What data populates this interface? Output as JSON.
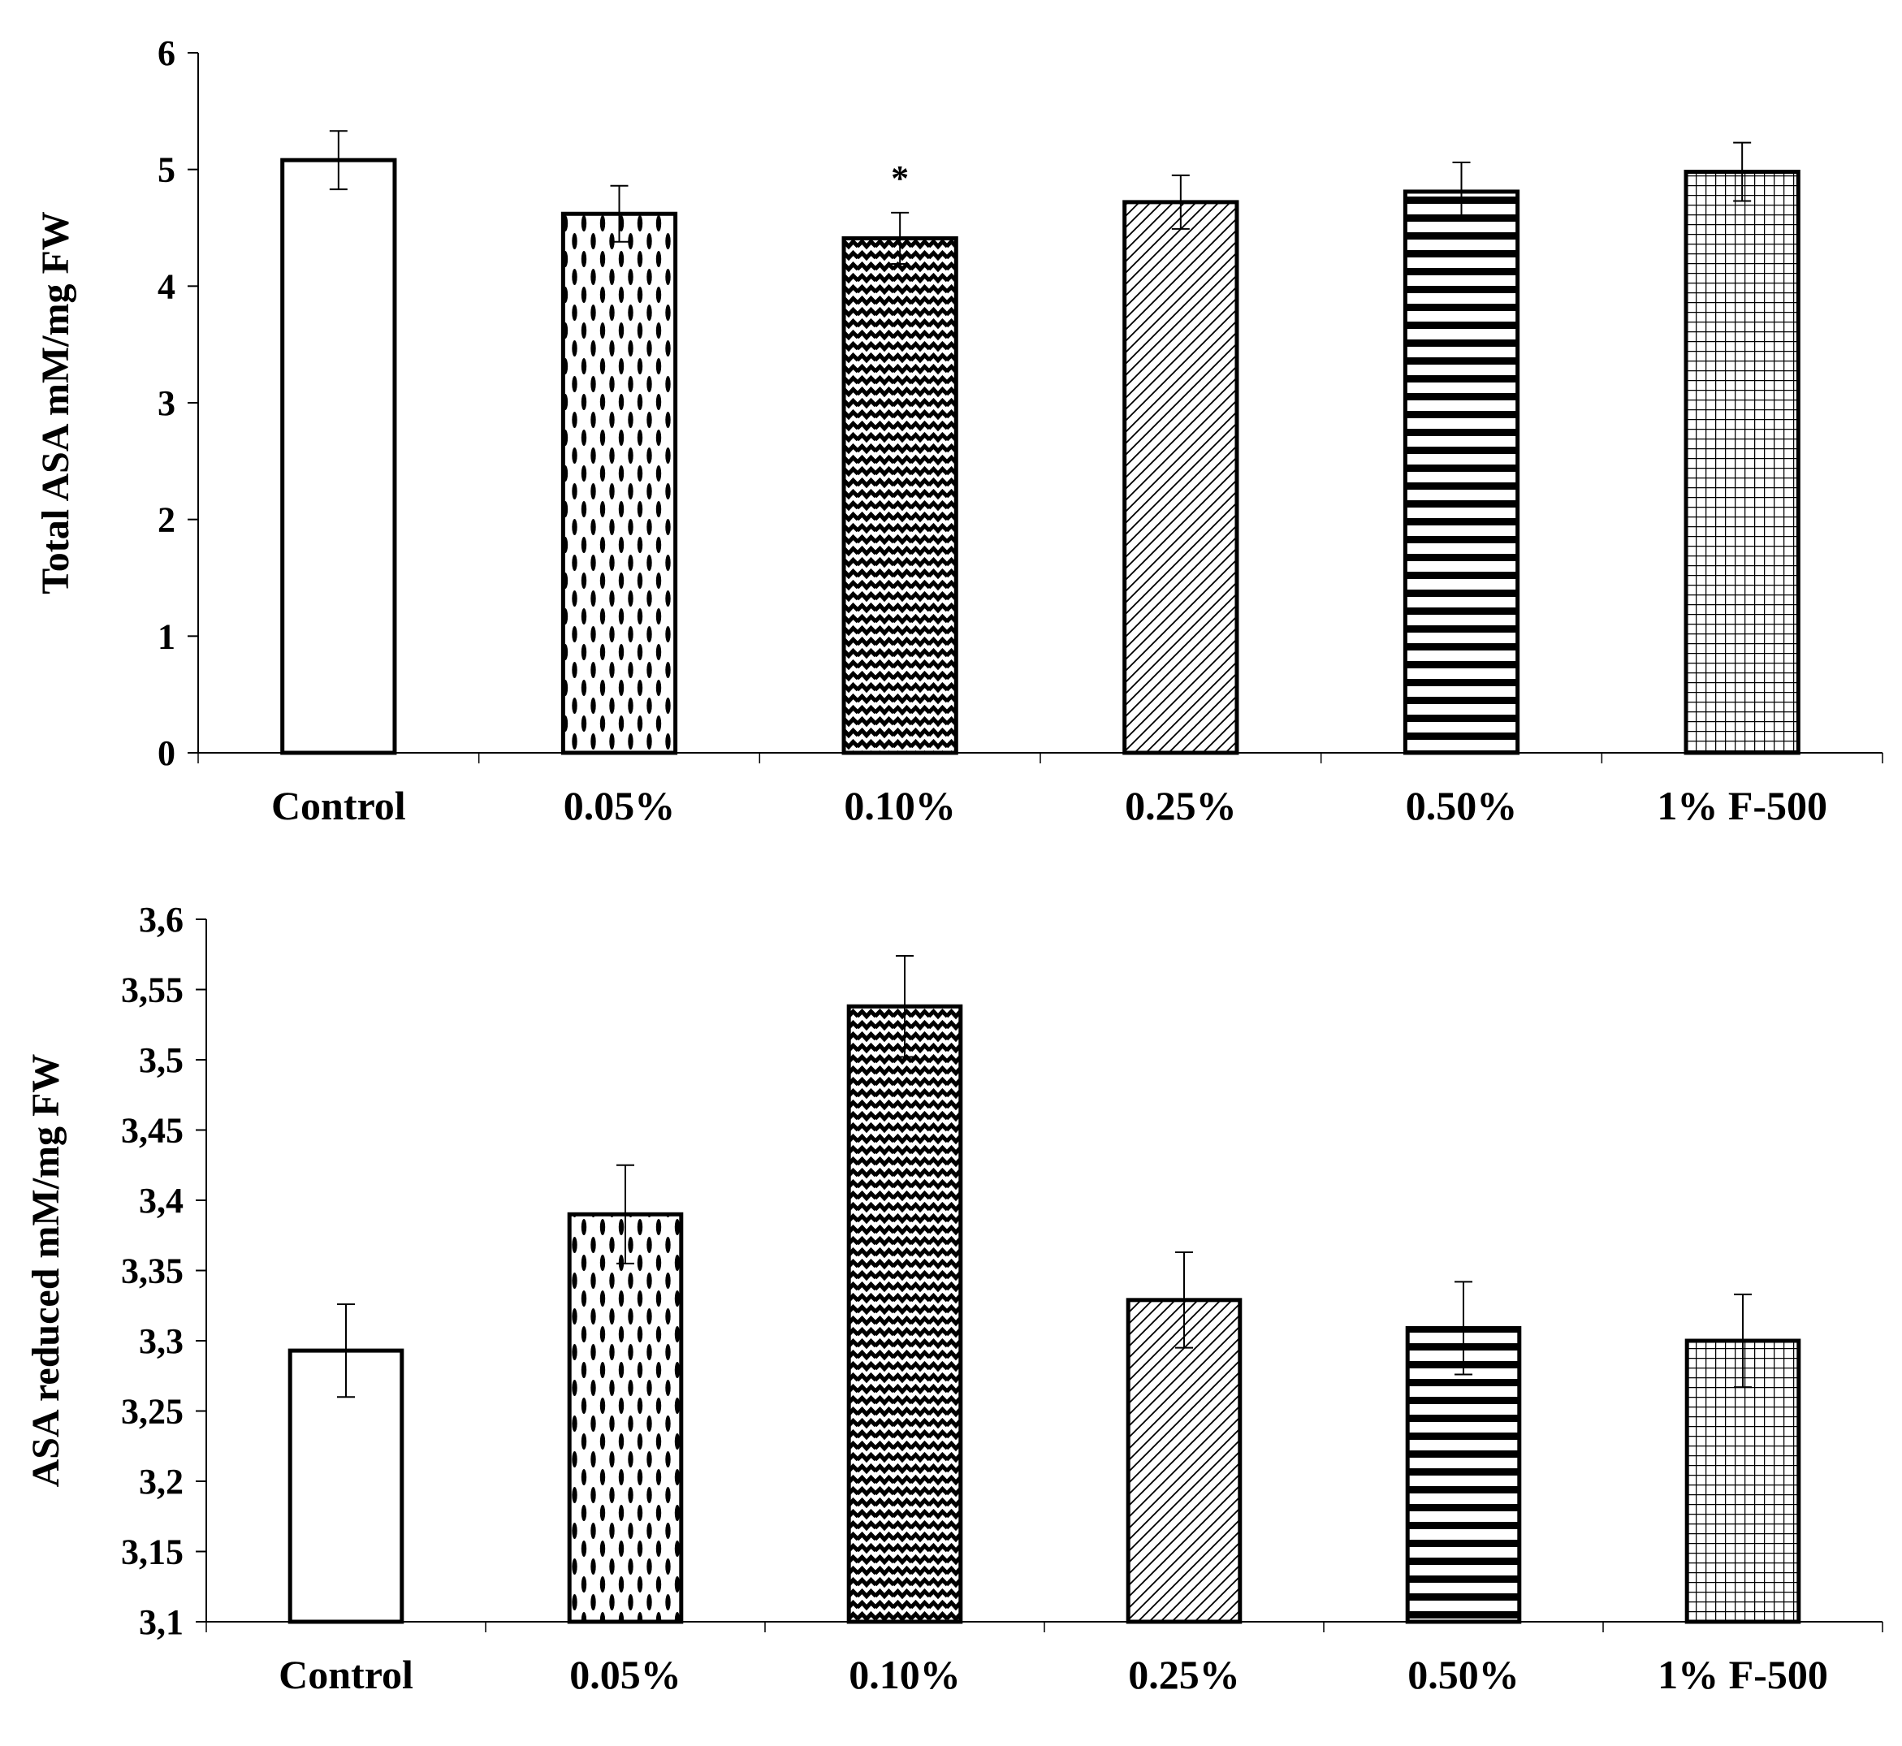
{
  "chart_data": [
    {
      "type": "bar",
      "categories": [
        "Control",
        "0.05%",
        "0.10%",
        "0.25%",
        "0.50%",
        "1% F-500"
      ],
      "values": [
        5.08,
        4.62,
        4.41,
        4.72,
        4.81,
        4.98
      ],
      "errors": [
        0.25,
        0.24,
        0.22,
        0.23,
        0.25,
        0.25
      ],
      "patterns": [
        "blank",
        "ovals",
        "zigzag",
        "diagonal",
        "stripes",
        "grid"
      ],
      "annotations": [
        {
          "category": "0.10%",
          "text": "*"
        }
      ],
      "ylabel": "Total ASA mM/mg FW",
      "xlabel": "",
      "title": "",
      "ylim": [
        0,
        6
      ],
      "yticks": [
        "0",
        "1",
        "2",
        "3",
        "4",
        "5",
        "6"
      ],
      "grid": false
    },
    {
      "type": "bar",
      "categories": [
        "Control",
        "0.05%",
        "0.10%",
        "0.25%",
        "0.50%",
        "1% F-500"
      ],
      "values": [
        3.293,
        3.39,
        3.538,
        3.329,
        3.309,
        3.3
      ],
      "errors": [
        0.033,
        0.035,
        0.036,
        0.034,
        0.033,
        0.033
      ],
      "patterns": [
        "blank",
        "ovals",
        "zigzag",
        "diagonal",
        "stripes",
        "grid"
      ],
      "annotations": [],
      "ylabel": "ASA reduced mM/mg FW",
      "xlabel": "",
      "title": "",
      "ylim": [
        3.1,
        3.6
      ],
      "yticks": [
        "3,1",
        "3,15",
        "3,2",
        "3,25",
        "3,3",
        "3,35",
        "3,4",
        "3,45",
        "3,5",
        "3,55",
        "3,6"
      ],
      "grid": false
    }
  ]
}
